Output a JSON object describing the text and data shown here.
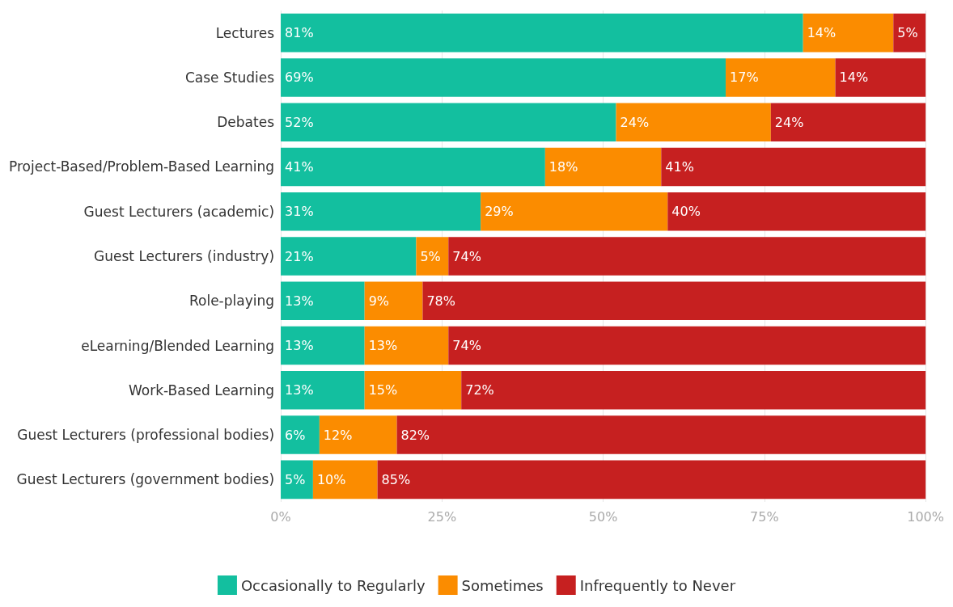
{
  "chart_data": {
    "type": "bar",
    "orientation": "horizontal",
    "stacked": true,
    "categories": [
      "Lectures",
      "Case Studies",
      "Debates",
      "Project-Based/Problem-Based Learning",
      "Guest Lecturers (academic)",
      "Guest Lecturers (industry)",
      "Role-playing",
      "eLearning/Blended Learning",
      "Work-Based Learning",
      "Guest Lecturers (professional bodies)",
      "Guest Lecturers (government bodies)"
    ],
    "series": [
      {
        "name": "Occasionally to Regularly",
        "color": "#13bf9f",
        "values": [
          81,
          69,
          52,
          41,
          31,
          21,
          13,
          13,
          13,
          6,
          5
        ],
        "value_labels": [
          "81%",
          "69%",
          "52%",
          "41%",
          "31%",
          "21%",
          "13%",
          "13%",
          "13%",
          "6%",
          "5%"
        ]
      },
      {
        "name": "Sometimes",
        "color": "#fb8c00",
        "values": [
          14,
          17,
          24,
          18,
          29,
          5,
          9,
          13,
          15,
          12,
          10
        ],
        "value_labels": [
          "14%",
          "17%",
          "24%",
          "18%",
          "29%",
          "5%",
          "9%",
          "13%",
          "15%",
          "12%",
          "10%"
        ]
      },
      {
        "name": "Infrequently to Never",
        "color": "#c62020",
        "values": [
          5,
          14,
          24,
          41,
          40,
          74,
          78,
          74,
          72,
          82,
          85
        ],
        "value_labels": [
          "5%",
          "14%",
          "24%",
          "41%",
          "40%",
          "74%",
          "78%",
          "74%",
          "72%",
          "82%",
          "85%"
        ]
      }
    ],
    "xlim": [
      0,
      100
    ],
    "xticks": [
      {
        "value": 0,
        "label": "0%"
      },
      {
        "value": 25,
        "label": "25%"
      },
      {
        "value": 50,
        "label": "50%"
      },
      {
        "value": 75,
        "label": "75%"
      },
      {
        "value": 100,
        "label": "100%"
      }
    ],
    "grid": "x",
    "legend": "bottom"
  }
}
